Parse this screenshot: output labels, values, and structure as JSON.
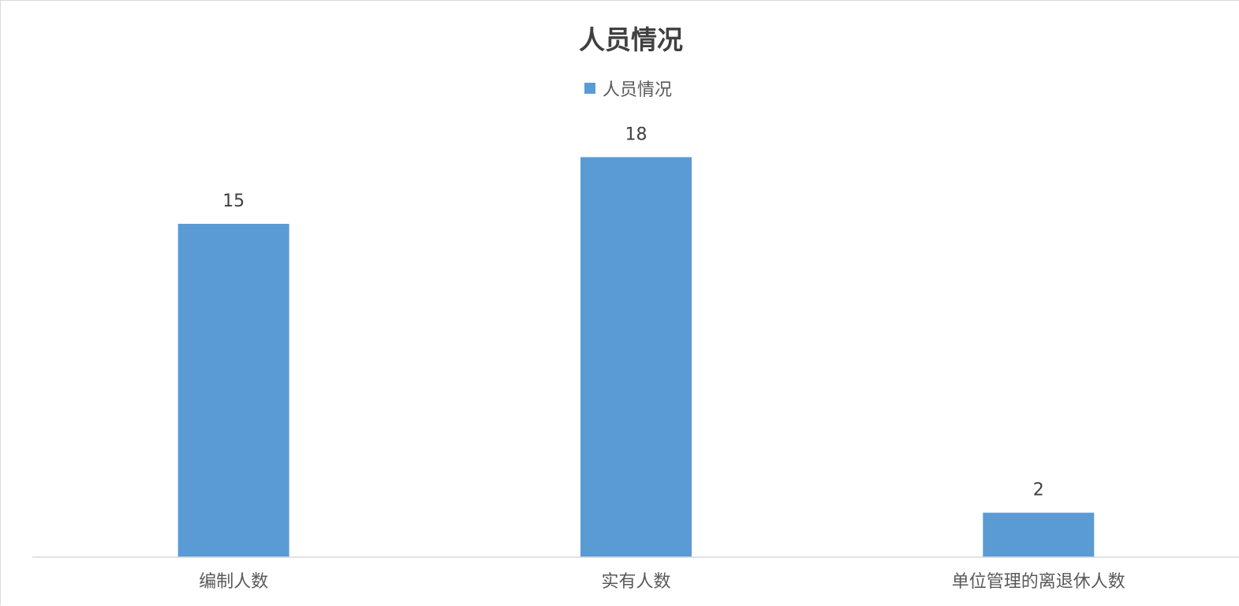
{
  "chart_data": {
    "type": "bar",
    "title": "人员情况",
    "categories": [
      "编制人数",
      "实有人数",
      "单位管理的离退休人数"
    ],
    "series": [
      {
        "name": "人员情况",
        "values": [
          15,
          18,
          2
        ],
        "color": "#5b9bd5"
      }
    ],
    "data_labels": [
      "15",
      "18",
      "2"
    ],
    "ylim": [
      0,
      20
    ],
    "grid": false,
    "legend": "top-center",
    "xlabel": "",
    "ylabel": ""
  }
}
